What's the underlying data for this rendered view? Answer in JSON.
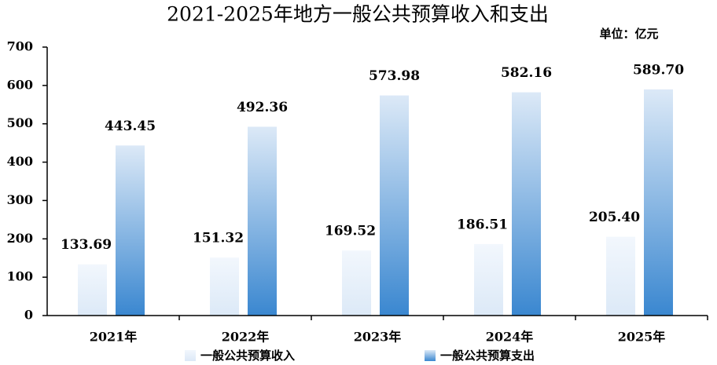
{
  "chart_data": {
    "type": "bar",
    "title": "2021-2025年地方一般公共预算收入和支出",
    "unit_label": "单位：亿元",
    "categories": [
      "2021年",
      "2022年",
      "2023年",
      "2024年",
      "2025年"
    ],
    "series": [
      {
        "name": "一般公共预算收入",
        "color": "#dce9f7",
        "values": [
          133.69,
          151.32,
          169.52,
          186.51,
          205.4
        ],
        "value_labels": [
          "133.69",
          "151.32",
          "169.52",
          "186.51",
          "205.40"
        ]
      },
      {
        "name": "一般公共预算支出",
        "color": "#3a87d0",
        "values": [
          443.45,
          492.36,
          573.98,
          582.16,
          589.7
        ],
        "value_labels": [
          "443.45",
          "492.36",
          "573.98",
          "582.16",
          "589.70"
        ]
      }
    ],
    "ylim": [
      0,
      700
    ],
    "yticks": [
      0,
      100,
      200,
      300,
      400,
      500,
      600,
      700
    ]
  }
}
